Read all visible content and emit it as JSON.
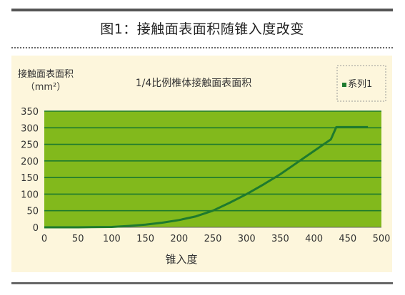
{
  "figure_caption": "图1：接触面表面积随锥入度改变",
  "chart_data": {
    "type": "line",
    "title": "1/4比例椎体接触面表面积",
    "ylabel_line1": "接触面表面积",
    "ylabel_line2": "（mm²）",
    "xlabel": "锥入度",
    "xlim": [
      0,
      500
    ],
    "ylim": [
      0,
      350
    ],
    "xticks": [
      0,
      50,
      100,
      150,
      200,
      250,
      300,
      350,
      400,
      450,
      500
    ],
    "yticks": [
      0,
      50,
      100,
      150,
      200,
      250,
      300,
      350
    ],
    "grid": true,
    "legend_position": "top-right",
    "series": [
      {
        "name": "系列1",
        "color": "#1e7a2e",
        "x": [
          0,
          50,
          100,
          125,
          150,
          175,
          200,
          225,
          250,
          275,
          300,
          325,
          350,
          375,
          400,
          425,
          433,
          450,
          475,
          480
        ],
        "y": [
          0,
          0,
          1,
          4,
          8,
          14,
          22,
          33,
          50,
          74,
          100,
          129,
          160,
          195,
          230,
          265,
          302,
          302,
          302,
          302
        ]
      }
    ],
    "colors": {
      "plot_background": "#82b91c",
      "panel_background": "#fdf6dc",
      "gridline": "#1e7a2e",
      "line": "#1e7a2e"
    }
  }
}
